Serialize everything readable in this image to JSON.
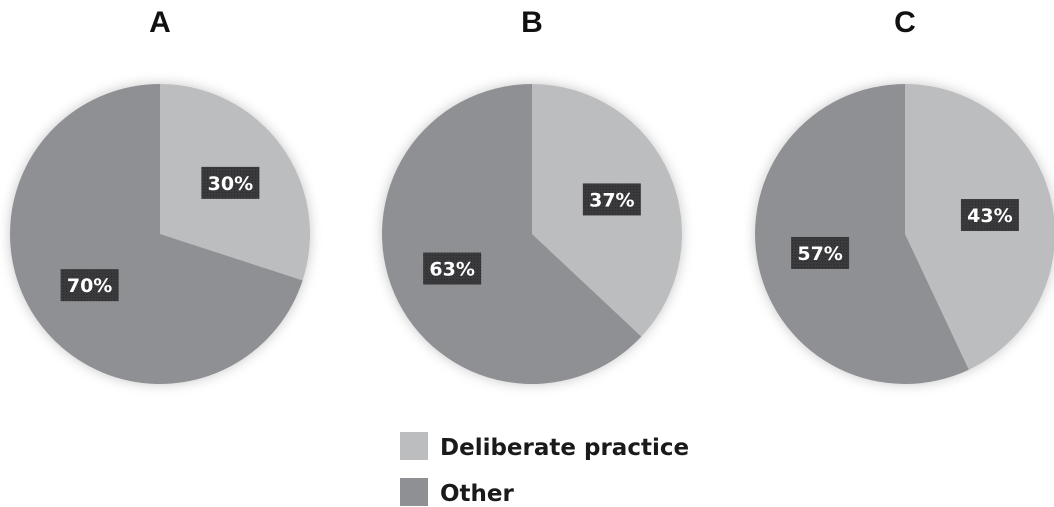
{
  "chart_data": [
    {
      "type": "pie",
      "title": "A",
      "categories": [
        "Deliberate practice",
        "Other"
      ],
      "values": [
        30,
        70
      ],
      "labels": [
        "30%",
        "70%"
      ]
    },
    {
      "type": "pie",
      "title": "B",
      "categories": [
        "Deliberate practice",
        "Other"
      ],
      "values": [
        37,
        63
      ],
      "labels": [
        "37%",
        "63%"
      ]
    },
    {
      "type": "pie",
      "title": "C",
      "categories": [
        "Deliberate practice",
        "Other"
      ],
      "values": [
        43,
        57
      ],
      "labels": [
        "43%",
        "57%"
      ]
    }
  ],
  "legend": {
    "placement": "bottom-center",
    "items": [
      {
        "label": "Deliberate practice",
        "color": "#bcbdbf"
      },
      {
        "label": "Other",
        "color": "#8f9094"
      }
    ]
  },
  "colors": {
    "deliberate_practice": "#bcbdbf",
    "other": "#8f9094",
    "label_background": "#3a3a3c",
    "label_text": "#ffffff"
  }
}
